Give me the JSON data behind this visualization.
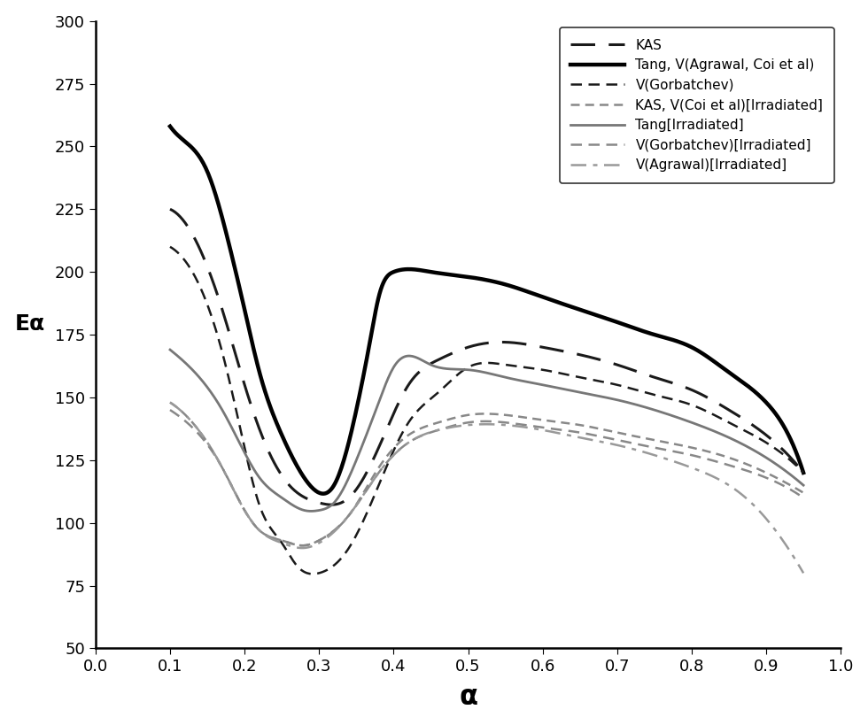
{
  "title": "",
  "xlabel": "α",
  "ylabel": "Eα",
  "xlim": [
    0,
    1.0
  ],
  "ylim": [
    50,
    300
  ],
  "xticks": [
    0,
    0.1,
    0.2,
    0.3,
    0.4,
    0.5,
    0.6,
    0.7,
    0.8,
    0.9,
    1.0
  ],
  "yticks": [
    50,
    75,
    100,
    125,
    150,
    175,
    200,
    225,
    250,
    275,
    300
  ],
  "curves": {
    "KAS": {
      "color": "#1a1a1a",
      "linestyle": "dashed_long",
      "linewidth": 2.2,
      "x": [
        0.1,
        0.13,
        0.17,
        0.2,
        0.23,
        0.26,
        0.3,
        0.34,
        0.38,
        0.42,
        0.46,
        0.5,
        0.55,
        0.6,
        0.65,
        0.7,
        0.75,
        0.8,
        0.85,
        0.9,
        0.95
      ],
      "y": [
        225,
        215,
        185,
        155,
        130,
        115,
        108,
        110,
        130,
        155,
        165,
        170,
        172,
        170,
        167,
        163,
        158,
        153,
        145,
        135,
        120
      ]
    },
    "Tang_Agrawal_Coi": {
      "color": "#000000",
      "linestyle": "solid",
      "linewidth": 3.2,
      "x": [
        0.1,
        0.12,
        0.15,
        0.18,
        0.2,
        0.22,
        0.25,
        0.28,
        0.3,
        0.32,
        0.35,
        0.37,
        0.38,
        0.4,
        0.45,
        0.5,
        0.55,
        0.6,
        0.65,
        0.7,
        0.75,
        0.8,
        0.85,
        0.9,
        0.93,
        0.95
      ],
      "y": [
        258,
        252,
        240,
        210,
        185,
        160,
        135,
        118,
        112,
        115,
        145,
        175,
        190,
        200,
        200,
        198,
        195,
        190,
        185,
        180,
        175,
        170,
        160,
        148,
        135,
        120
      ]
    },
    "V_Gorbatchev": {
      "color": "#1a1a1a",
      "linestyle": "dashed_medium",
      "linewidth": 1.8,
      "x": [
        0.1,
        0.13,
        0.17,
        0.2,
        0.22,
        0.25,
        0.27,
        0.3,
        0.34,
        0.38,
        0.42,
        0.46,
        0.5,
        0.55,
        0.6,
        0.65,
        0.7,
        0.75,
        0.8,
        0.85,
        0.9,
        0.95
      ],
      "y": [
        210,
        200,
        168,
        130,
        107,
        92,
        83,
        80,
        90,
        115,
        140,
        152,
        162,
        163,
        161,
        158,
        155,
        151,
        147,
        140,
        132,
        120
      ]
    },
    "KAS_Coi_Irradiated": {
      "color": "#888888",
      "linestyle": "dashed_small",
      "linewidth": 1.8,
      "x": [
        0.1,
        0.13,
        0.17,
        0.2,
        0.22,
        0.25,
        0.28,
        0.3,
        0.34,
        0.38,
        0.42,
        0.46,
        0.5,
        0.55,
        0.6,
        0.65,
        0.7,
        0.75,
        0.8,
        0.85,
        0.9,
        0.95
      ],
      "y": [
        148,
        140,
        122,
        105,
        97,
        93,
        91,
        93,
        103,
        122,
        135,
        140,
        143,
        143,
        141,
        139,
        136,
        133,
        130,
        126,
        120,
        112
      ]
    },
    "Tang_Irradiated": {
      "color": "#777777",
      "linestyle": "solid",
      "linewidth": 2.0,
      "x": [
        0.1,
        0.13,
        0.17,
        0.2,
        0.22,
        0.25,
        0.28,
        0.3,
        0.32,
        0.35,
        0.38,
        0.4,
        0.45,
        0.5,
        0.55,
        0.6,
        0.65,
        0.7,
        0.75,
        0.8,
        0.85,
        0.9,
        0.95
      ],
      "y": [
        169,
        161,
        145,
        128,
        118,
        110,
        105,
        105,
        108,
        125,
        148,
        162,
        163,
        161,
        158,
        155,
        152,
        149,
        145,
        140,
        134,
        126,
        115
      ]
    },
    "V_Gorbatchev_Irradiated": {
      "color": "#888888",
      "linestyle": "dashed_medium",
      "linewidth": 1.8,
      "x": [
        0.1,
        0.13,
        0.17,
        0.2,
        0.22,
        0.25,
        0.28,
        0.3,
        0.34,
        0.38,
        0.42,
        0.46,
        0.5,
        0.55,
        0.6,
        0.65,
        0.7,
        0.75,
        0.8,
        0.85,
        0.9,
        0.95
      ],
      "y": [
        145,
        138,
        122,
        105,
        97,
        93,
        91,
        93,
        103,
        120,
        132,
        137,
        140,
        140,
        138,
        136,
        133,
        130,
        127,
        123,
        118,
        110
      ]
    },
    "V_Agrawal_Irradiated": {
      "color": "#999999",
      "linestyle": "dashdot",
      "linewidth": 1.8,
      "x": [
        0.1,
        0.13,
        0.17,
        0.2,
        0.22,
        0.25,
        0.28,
        0.3,
        0.34,
        0.38,
        0.42,
        0.46,
        0.5,
        0.55,
        0.6,
        0.65,
        0.7,
        0.75,
        0.8,
        0.85,
        0.88,
        0.91,
        0.95
      ],
      "y": [
        148,
        140,
        122,
        105,
        97,
        92,
        90,
        92,
        103,
        120,
        132,
        137,
        139,
        139,
        137,
        134,
        131,
        127,
        122,
        115,
        108,
        98,
        80
      ]
    }
  },
  "legend_labels": {
    "KAS": "KAS",
    "Tang_Agrawal_Coi": "Tang, V(Agrawal, Coi et al)",
    "V_Gorbatchev": "V(Gorbatchev)",
    "KAS_Coi_Irradiated": "KAS, V(Coi et al)[Irradiated]",
    "Tang_Irradiated": "Tang[Irradiated]",
    "V_Gorbatchev_Irradiated": "V(Gorbatchev)[Irradiated]",
    "V_Agrawal_Irradiated": "V(Agrawal)[Irradiated]"
  }
}
